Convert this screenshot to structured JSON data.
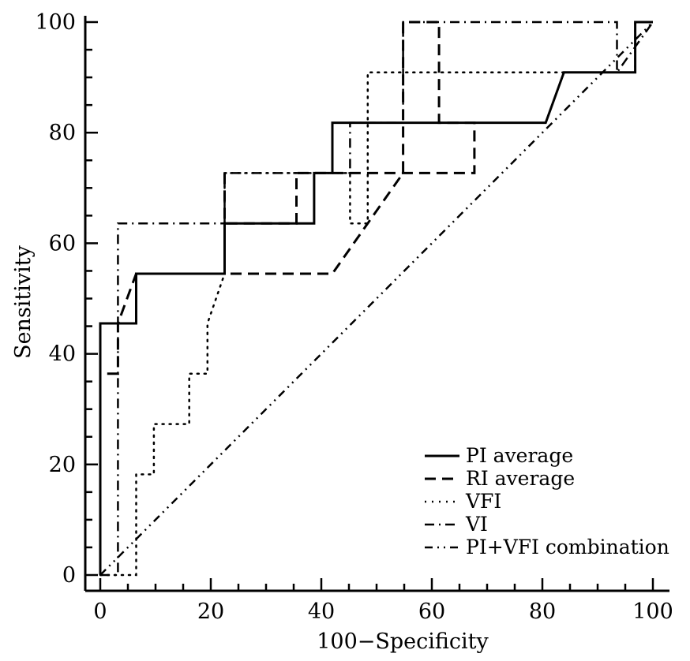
{
  "chart_data": {
    "type": "line",
    "title": "",
    "xlabel": "100−Specificity",
    "ylabel": "Sensitivity",
    "xlim": [
      0,
      100
    ],
    "ylim": [
      0,
      100
    ],
    "xticks": [
      0,
      20,
      40,
      60,
      80,
      100
    ],
    "yticks": [
      0,
      20,
      40,
      60,
      80,
      100
    ],
    "grid": false,
    "legend_position": "bottom-right",
    "series": [
      {
        "name": "PI average",
        "style": "solid",
        "points": [
          [
            0,
            0
          ],
          [
            0,
            45.5
          ],
          [
            6.5,
            45.5
          ],
          [
            6.5,
            54.5
          ],
          [
            22.5,
            54.5
          ],
          [
            22.5,
            63.6
          ],
          [
            38.7,
            63.6
          ],
          [
            38.7,
            72.7
          ],
          [
            42,
            72.7
          ],
          [
            42,
            81.8
          ],
          [
            80.6,
            81.8
          ],
          [
            83.9,
            90.9
          ],
          [
            96.8,
            90.9
          ],
          [
            96.8,
            100
          ],
          [
            100,
            100
          ]
        ]
      },
      {
        "name": "RI average",
        "style": "dashed",
        "points": [
          [
            0,
            0
          ],
          [
            0,
            36.4
          ],
          [
            3.2,
            36.4
          ],
          [
            3.2,
            45.5
          ],
          [
            6.5,
            54.5
          ],
          [
            22.5,
            54.5
          ],
          [
            42,
            54.5
          ],
          [
            54.8,
            72.7
          ],
          [
            54.8,
            100
          ],
          [
            61.3,
            100
          ],
          [
            61.3,
            81.8
          ],
          [
            67.7,
            81.8
          ],
          [
            67.7,
            72.7
          ],
          [
            51.6,
            72.7
          ],
          [
            35.5,
            72.7
          ],
          [
            35.5,
            63.6
          ],
          [
            22.5,
            63.6
          ],
          [
            22.5,
            72.7
          ]
        ]
      },
      {
        "name": "VFI",
        "style": "dotted",
        "points": [
          [
            0,
            0
          ],
          [
            6.5,
            0
          ],
          [
            6.5,
            18.2
          ],
          [
            9.7,
            18.2
          ],
          [
            9.7,
            27.3
          ],
          [
            16.1,
            27.3
          ],
          [
            16.1,
            36.4
          ],
          [
            19.4,
            36.4
          ],
          [
            19.4,
            45.5
          ],
          [
            22.5,
            54.5
          ],
          [
            22.5,
            72.7
          ],
          [
            45.2,
            72.7
          ],
          [
            45.2,
            63.6
          ],
          [
            48.4,
            63.6
          ],
          [
            48.4,
            90.9
          ],
          [
            67.7,
            90.9
          ],
          [
            96.8,
            90.9
          ],
          [
            96.8,
            100
          ],
          [
            100,
            100
          ]
        ]
      },
      {
        "name": "VI",
        "style": "dashdot",
        "points": [
          [
            0,
            0
          ],
          [
            3.2,
            0
          ],
          [
            3.2,
            63.6
          ],
          [
            22.5,
            63.6
          ],
          [
            22.5,
            72.7
          ],
          [
            45.2,
            72.7
          ],
          [
            45.2,
            81.8
          ],
          [
            54.8,
            81.8
          ],
          [
            54.8,
            100
          ],
          [
            93.5,
            100
          ],
          [
            93.5,
            90.9
          ],
          [
            100,
            100
          ]
        ]
      },
      {
        "name": "PI+VFI combination",
        "style": "dashdotdot",
        "points": [
          [
            0,
            0
          ],
          [
            100,
            100
          ]
        ]
      }
    ]
  }
}
